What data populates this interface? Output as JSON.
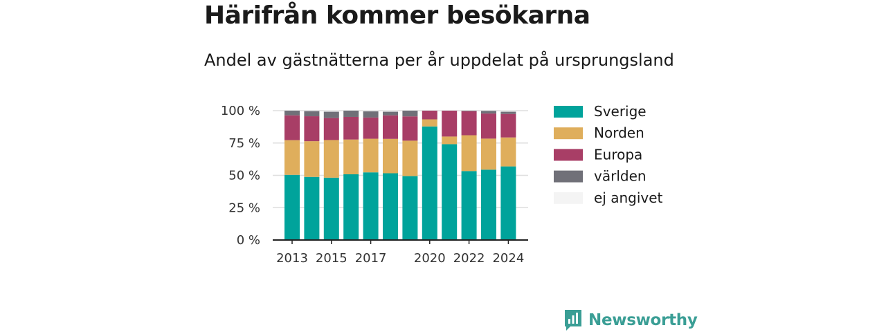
{
  "header": {
    "title": "Härifrån kommer besökarna",
    "subtitle": "Andel av gästnätterna per år uppdelat på ursprungsland"
  },
  "chart_data": {
    "type": "bar",
    "stacked": true,
    "x": [
      2013,
      2014,
      2015,
      2016,
      2017,
      2018,
      2019,
      2020,
      2021,
      2022,
      2023,
      2024
    ],
    "x_tick_labels": [
      "2013",
      "2015",
      "2017",
      "2020",
      "2022",
      "2024"
    ],
    "x_ticks": [
      2013,
      2015,
      2017,
      2020,
      2022,
      2024
    ],
    "y_ticks": [
      0,
      25,
      50,
      75,
      100
    ],
    "y_tick_labels": [
      "0 %",
      "25 %",
      "50 %",
      "75 %",
      "100 %"
    ],
    "ylim": [
      0,
      100
    ],
    "grid": "horizontal",
    "legend_position": "right",
    "series": [
      {
        "name": "Sverige",
        "color": "#00a39b",
        "values": [
          50.4,
          48.8,
          48.2,
          50.8,
          52.3,
          51.6,
          49.4,
          87.8,
          74.1,
          53.3,
          54.4,
          56.9
        ]
      },
      {
        "name": "Norden",
        "color": "#dfae5c",
        "values": [
          26.8,
          27.6,
          29.1,
          26.9,
          26.0,
          26.6,
          27.4,
          5.5,
          5.9,
          27.7,
          24.0,
          22.4
        ]
      },
      {
        "name": "Europa",
        "color": "#a83e66",
        "values": [
          19.2,
          19.3,
          17.0,
          17.5,
          16.4,
          18.2,
          18.8,
          6.7,
          20.0,
          18.6,
          19.4,
          18.2
        ]
      },
      {
        "name": "världen",
        "color": "#707078",
        "values": [
          3.6,
          4.0,
          4.9,
          4.8,
          4.8,
          2.8,
          4.4,
          0.0,
          0.0,
          0.4,
          2.1,
          1.7
        ]
      },
      {
        "name": "ej angivet",
        "color": "#f4f4f4",
        "values": [
          0.0,
          0.3,
          0.8,
          0.0,
          0.5,
          0.8,
          0.0,
          0.0,
          0.0,
          0.0,
          0.1,
          0.8
        ]
      }
    ]
  },
  "logo": {
    "text": "Newsworthy",
    "color": "#3a9e95"
  }
}
